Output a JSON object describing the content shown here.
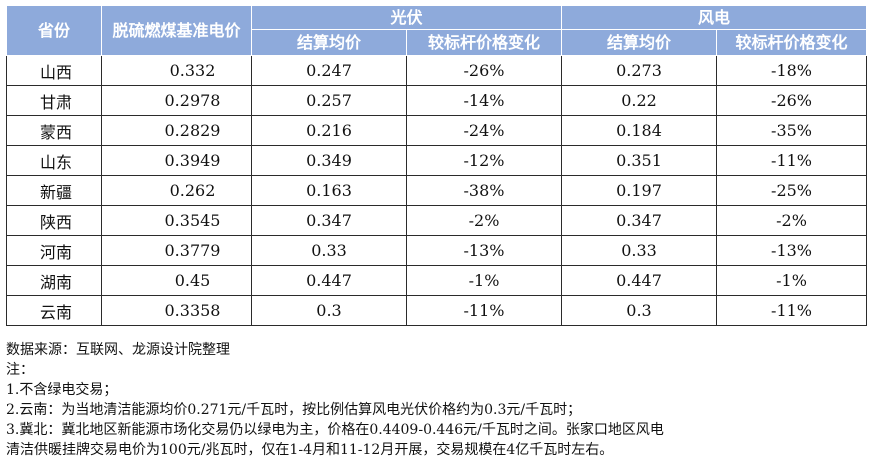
{
  "table": {
    "headers": {
      "province": "省份",
      "base_price": "脱硫燃煤基准电价",
      "pv_group": "光伏",
      "wind_group": "风电",
      "settle_price": "结算均价",
      "change": "较标杆价格变化"
    },
    "rows": [
      {
        "province": "山西",
        "base": "0.332",
        "pv_price": "0.247",
        "pv_change": "-26%",
        "wind_price": "0.273",
        "wind_change": "-18%"
      },
      {
        "province": "甘肃",
        "base": "0.2978",
        "pv_price": "0.257",
        "pv_change": "-14%",
        "wind_price": "0.22",
        "wind_change": "-26%"
      },
      {
        "province": "蒙西",
        "base": "0.2829",
        "pv_price": "0.216",
        "pv_change": "-24%",
        "wind_price": "0.184",
        "wind_change": "-35%"
      },
      {
        "province": "山东",
        "base": "0.3949",
        "pv_price": "0.349",
        "pv_change": "-12%",
        "wind_price": "0.351",
        "wind_change": "-11%"
      },
      {
        "province": "新疆",
        "base": "0.262",
        "pv_price": "0.163",
        "pv_change": "-38%",
        "wind_price": "0.197",
        "wind_change": "-25%"
      },
      {
        "province": "陕西",
        "base": "0.3545",
        "pv_price": "0.347",
        "pv_change": "-2%",
        "wind_price": "0.347",
        "wind_change": "-2%"
      },
      {
        "province": "河南",
        "base": "0.3779",
        "pv_price": "0.33",
        "pv_change": "-13%",
        "wind_price": "0.33",
        "wind_change": "-13%"
      },
      {
        "province": "湖南",
        "base": "0.45",
        "pv_price": "0.447",
        "pv_change": "-1%",
        "wind_price": "0.447",
        "wind_change": "-1%"
      },
      {
        "province": "云南",
        "base": "0.3358",
        "pv_price": "0.3",
        "pv_change": "-11%",
        "wind_price": "0.3",
        "wind_change": "-11%"
      }
    ]
  },
  "notes": {
    "source": "数据来源：互联网、龙源设计院整理",
    "label": "注：",
    "items": [
      "1.不含绿电交易；",
      "2.云南：为当地清洁能源均价0.271元/千瓦时，按比例估算风电光伏价格约为0.3元/千瓦时；",
      "3.冀北：冀北地区新能源市场化交易仍以绿电为主，价格在0.4409-0.446元/千瓦时之间。张家口地区风电",
      "清洁供暖挂牌交易电价为100元/兆瓦时，仅在1-4月和11-12月开展，交易规模在4亿千瓦时左右。"
    ]
  },
  "colors": {
    "header_bg": "#8eaadb",
    "header_text": "#ffffff",
    "border": "#2b2b2b"
  }
}
